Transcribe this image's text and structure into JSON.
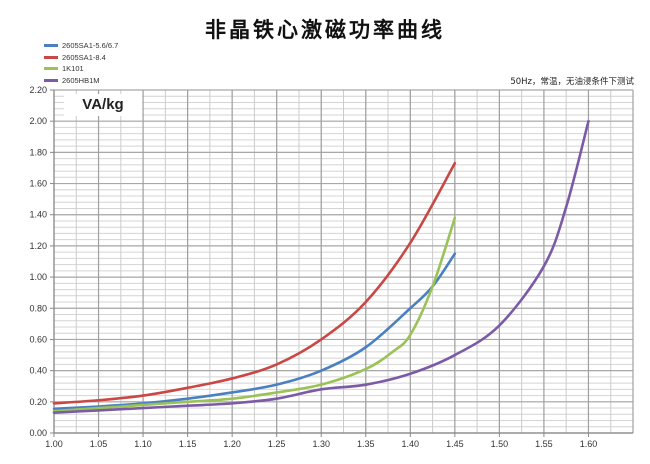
{
  "chart_data": {
    "type": "line",
    "title": "非晶铁心激磁功率曲线",
    "annotation": "50Hz，常温，无油浸条件下测试",
    "ylabel": "VA/kg",
    "xlabel": "",
    "xlim": [
      1.0,
      1.65
    ],
    "ylim": [
      0.0,
      2.2
    ],
    "x_ticks": [
      "1.00",
      "1.05",
      "1.10",
      "1.15",
      "1.20",
      "1.25",
      "1.30",
      "1.35",
      "1.40",
      "1.45",
      "1.50",
      "1.55",
      "1.60"
    ],
    "y_ticks": [
      "0.00",
      "0.20",
      "0.40",
      "0.60",
      "0.80",
      "1.00",
      "1.20",
      "1.40",
      "1.60",
      "1.80",
      "2.00",
      "2.20"
    ],
    "grid": true,
    "legend_position": "top-left",
    "series": [
      {
        "name": "2605SA1-5.6/6.7",
        "color": "#4a7fc1",
        "x": [
          1.0,
          1.05,
          1.1,
          1.15,
          1.2,
          1.25,
          1.3,
          1.35,
          1.4,
          1.425,
          1.45
        ],
        "y": [
          0.155,
          0.17,
          0.19,
          0.22,
          0.26,
          0.31,
          0.4,
          0.55,
          0.8,
          0.94,
          1.15
        ]
      },
      {
        "name": "2605SA1-8.4",
        "color": "#c94744",
        "x": [
          1.0,
          1.05,
          1.1,
          1.15,
          1.2,
          1.25,
          1.3,
          1.35,
          1.4,
          1.45
        ],
        "y": [
          0.19,
          0.21,
          0.24,
          0.29,
          0.35,
          0.44,
          0.6,
          0.84,
          1.22,
          1.73
        ]
      },
      {
        "name": "1K101",
        "color": "#9bc256",
        "x": [
          1.0,
          1.05,
          1.1,
          1.15,
          1.2,
          1.25,
          1.3,
          1.35,
          1.38,
          1.4,
          1.425,
          1.45
        ],
        "y": [
          0.14,
          0.16,
          0.18,
          0.2,
          0.22,
          0.26,
          0.31,
          0.41,
          0.52,
          0.63,
          0.94,
          1.38
        ]
      },
      {
        "name": "2605HB1M",
        "color": "#7c5ba6",
        "x": [
          1.0,
          1.05,
          1.1,
          1.15,
          1.2,
          1.25,
          1.3,
          1.35,
          1.4,
          1.45,
          1.5,
          1.55,
          1.575,
          1.6
        ],
        "y": [
          0.13,
          0.145,
          0.16,
          0.175,
          0.19,
          0.22,
          0.28,
          0.31,
          0.38,
          0.5,
          0.69,
          1.07,
          1.45,
          2.0
        ]
      }
    ]
  }
}
